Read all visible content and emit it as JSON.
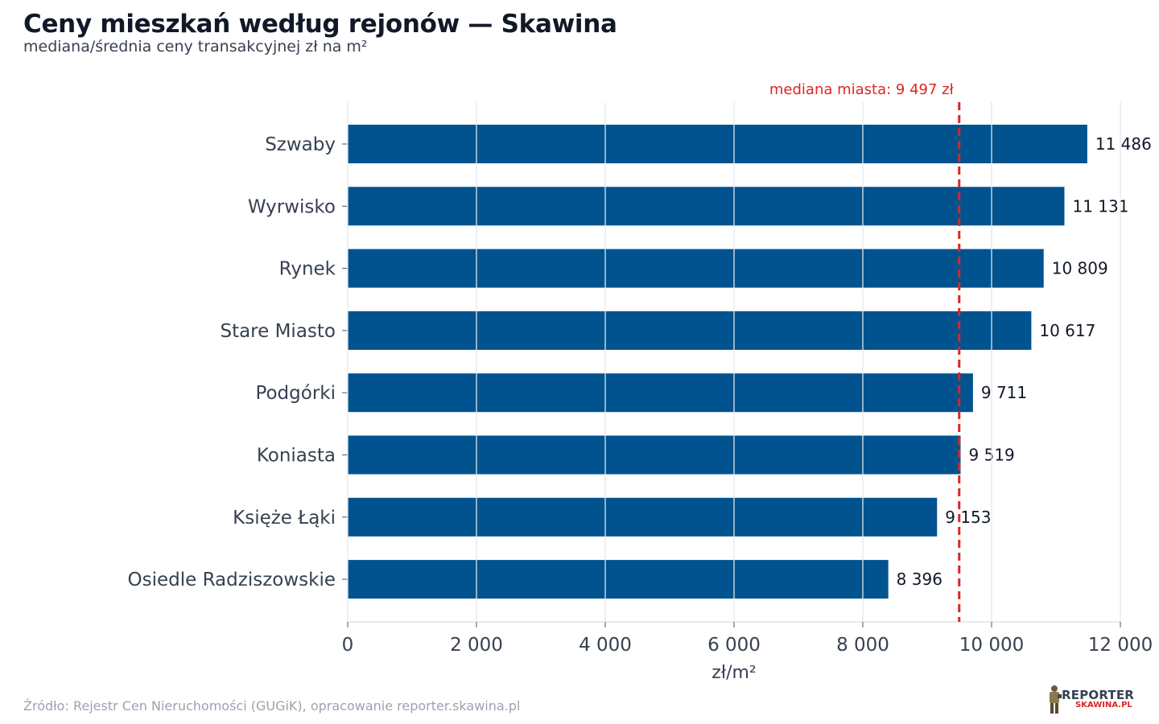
{
  "header": {
    "title": "Ceny mieszkań według rejonów — Skawina",
    "subtitle": "mediana/średnia ceny transakcyjnej zł na m²"
  },
  "footer": {
    "source": "Źródło: Rejestr Cen Nieruchomości (GUGiK), opracowanie reporter.skawina.pl",
    "logo_top": "REPORTER",
    "logo_bottom": "SKAWINA.PL"
  },
  "chart_data": {
    "type": "bar",
    "orientation": "horizontal",
    "categories": [
      "Szwaby",
      "Wyrwisko",
      "Rynek",
      "Stare Miasto",
      "Podgórki",
      "Koniasta",
      "Księże Łąki",
      "Osiedle Radziszowskie"
    ],
    "values": [
      11486,
      11131,
      10809,
      10617,
      9711,
      9519,
      9153,
      8396
    ],
    "value_labels": [
      "11 486",
      "11 131",
      "10 809",
      "10 617",
      "9 711",
      "9 519",
      "9 153",
      "8 396"
    ],
    "xlabel": "zł/m²",
    "xlim": [
      0,
      12000
    ],
    "xticks": [
      0,
      2000,
      4000,
      6000,
      8000,
      10000,
      12000
    ],
    "xtick_labels": [
      "0",
      "2 000",
      "4 000",
      "6 000",
      "8 000",
      "10 000",
      "12 000"
    ],
    "reference_line": {
      "value": 9497,
      "label": "mediana miasta: 9 497 zł",
      "style": "dashed"
    },
    "grid": "vertical",
    "colors": {
      "bar": "#00538f",
      "reference": "#dc2626",
      "grid": "#e5e7eb"
    }
  }
}
